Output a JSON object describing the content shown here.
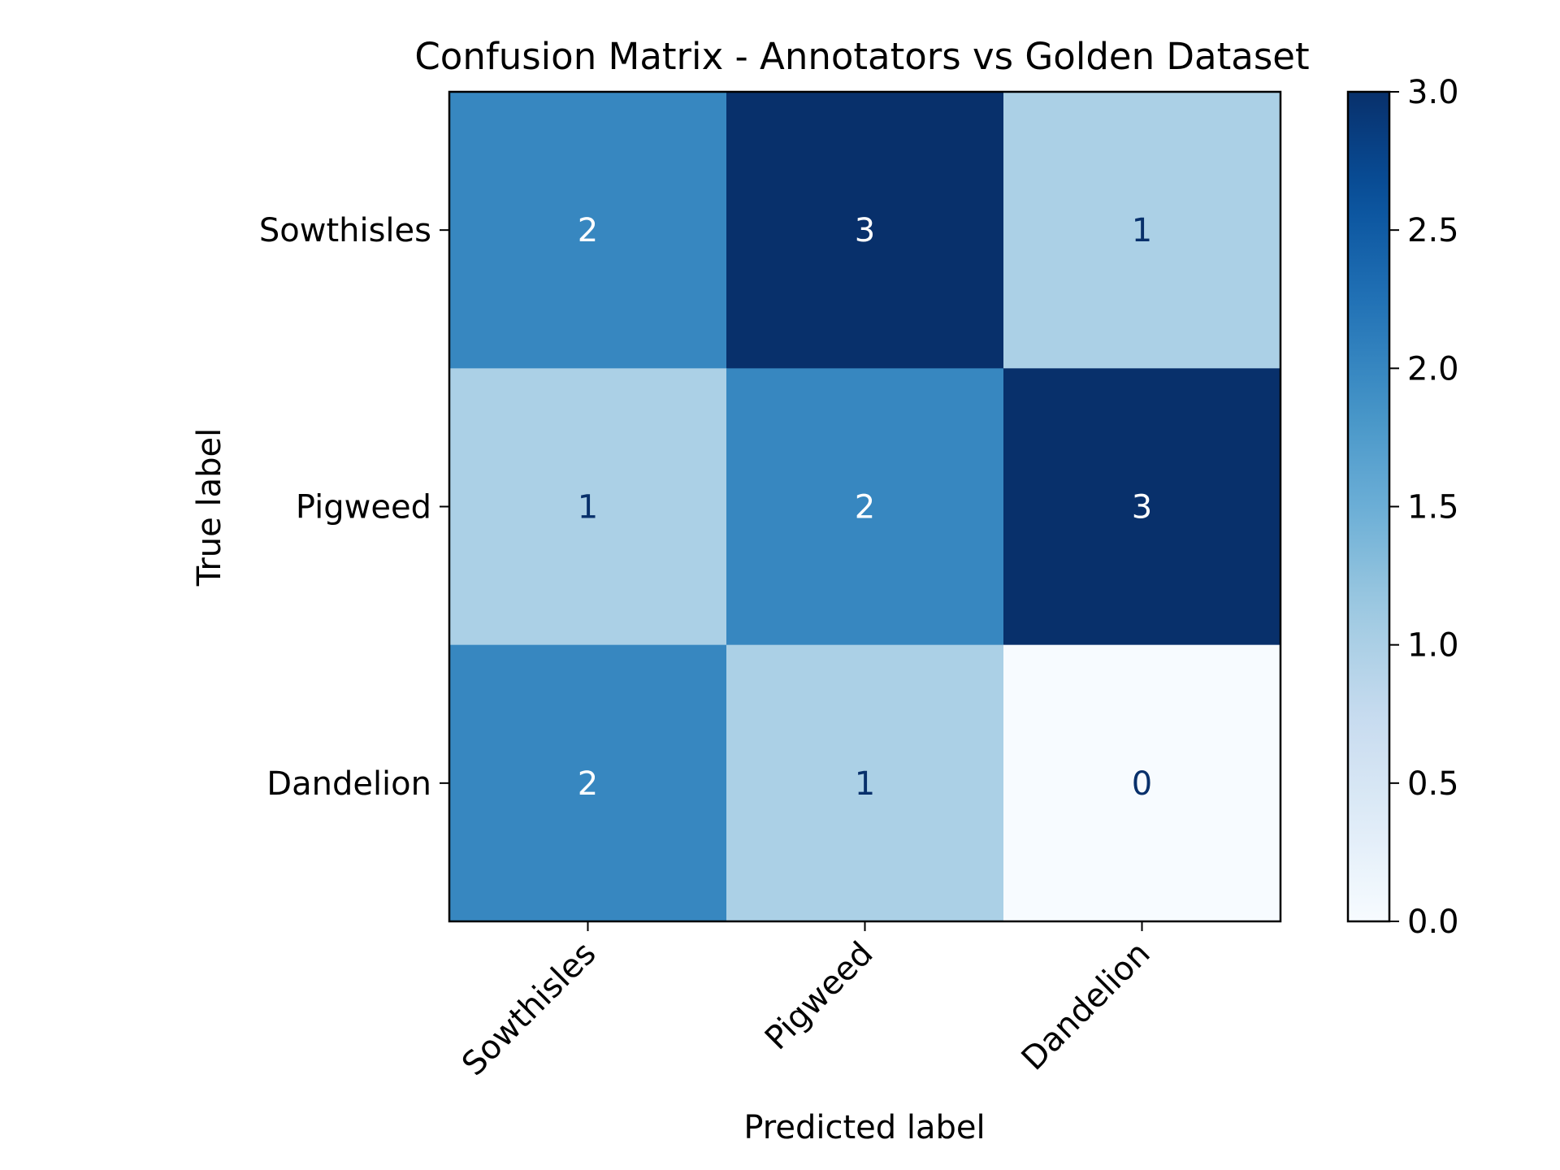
{
  "chart_data": {
    "type": "heatmap",
    "title": "Confusion Matrix - Annotators vs Golden Dataset",
    "xlabel": "Predicted label",
    "ylabel": "True label",
    "x_categories": [
      "Sowthisles",
      "Pigweed",
      "Dandelion"
    ],
    "y_categories": [
      "Sowthisles",
      "Pigweed",
      "Dandelion"
    ],
    "values": [
      [
        2,
        3,
        1
      ],
      [
        1,
        2,
        3
      ],
      [
        2,
        1,
        0
      ]
    ],
    "colormap": "Blues",
    "colorbar": {
      "range": [
        0,
        3
      ],
      "ticks": [
        "0.0",
        "0.5",
        "1.0",
        "1.5",
        "2.0",
        "2.5",
        "3.0"
      ]
    },
    "x_tick_rotation_deg": 45,
    "grid": false,
    "colors": {
      "blues_stops": [
        "#f7fbff",
        "#deebf7",
        "#c6dbef",
        "#9ecae1",
        "#6baed6",
        "#4292c6",
        "#2171b5",
        "#08519c",
        "#08306b"
      ],
      "dark_text": "#08306b",
      "light_text": "#ffffff"
    }
  }
}
